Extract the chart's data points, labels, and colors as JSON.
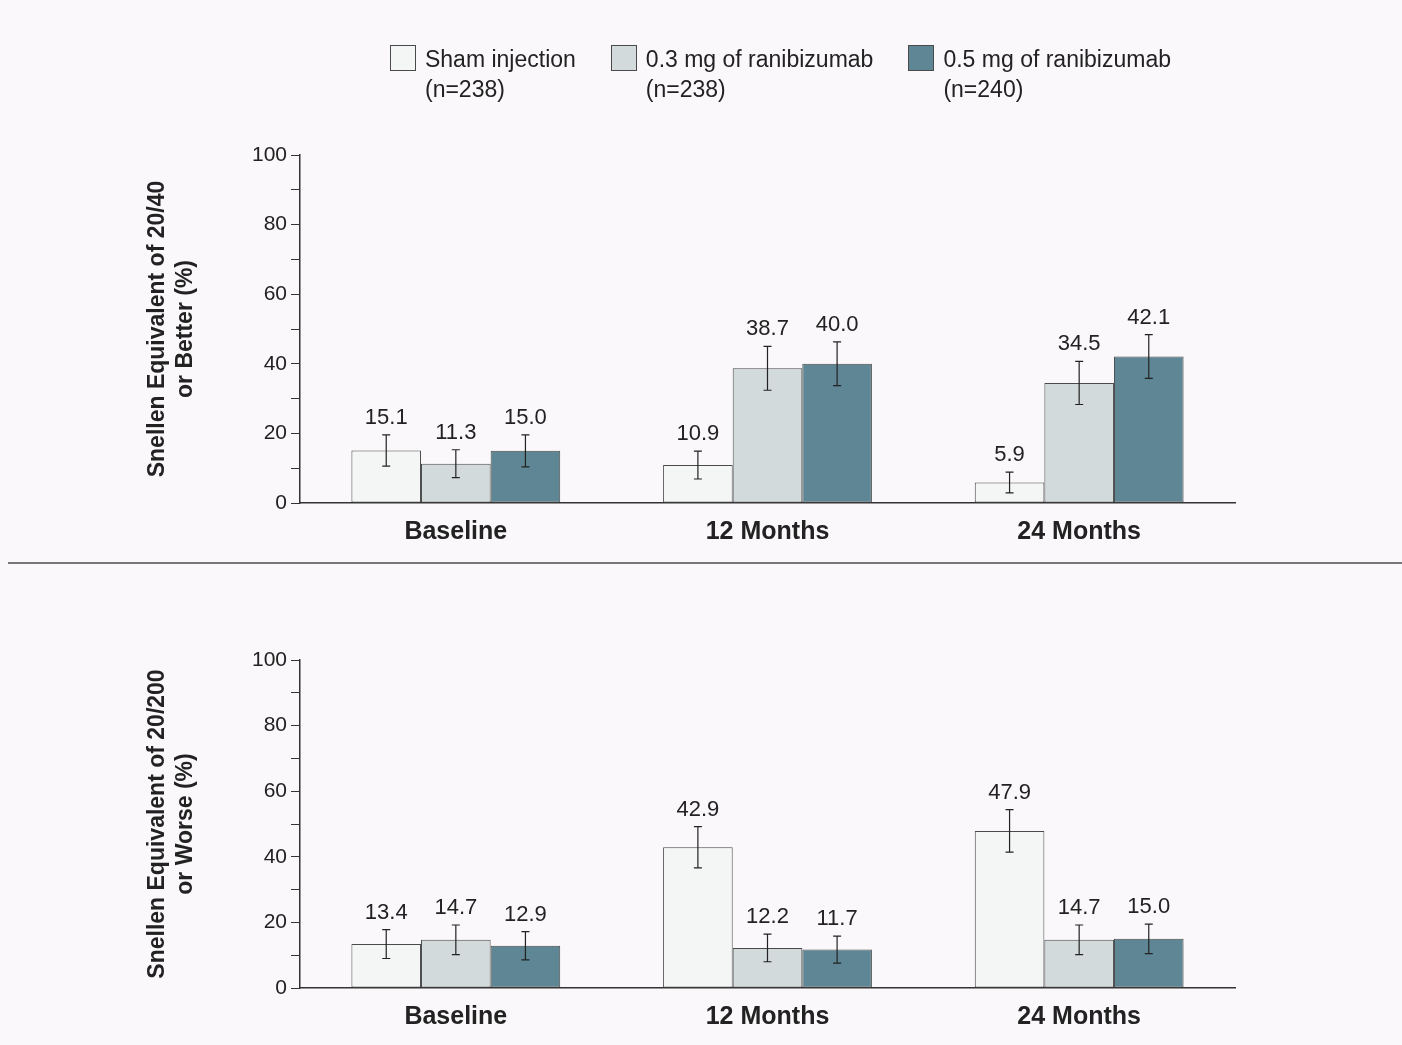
{
  "chart_data": [
    {
      "type": "bar",
      "ylabel": "Snellen Equivalent of 20/40 or Better (%)",
      "categories": [
        "Baseline",
        "12 Months",
        "24 Months"
      ],
      "series": [
        {
          "name": "Sham injection (n=238)",
          "color": "#f4f6f6",
          "values": [
            15.1,
            10.9,
            5.9
          ],
          "errors": [
            4.5,
            4,
            3
          ],
          "value_labels": [
            "15.1",
            "10.9",
            "5.9"
          ]
        },
        {
          "name": "0.3 mg of ranibizumab (n=238)",
          "color": "#d3dadc",
          "values": [
            11.3,
            38.7,
            34.5
          ],
          "errors": [
            4,
            6.3,
            6.2
          ],
          "value_labels": [
            "11.3",
            "38.7",
            "34.5"
          ]
        },
        {
          "name": "0.5 mg of ranibizumab (n=240)",
          "color": "#5e8694",
          "values": [
            15.0,
            40.0,
            42.1
          ],
          "errors": [
            4.6,
            6.3,
            6.3
          ],
          "value_labels": [
            "15.0",
            "40.0",
            "42.1"
          ]
        }
      ],
      "ylim": [
        0,
        100
      ],
      "yticks": [
        0,
        {
          "value": 10,
          "label": null
        },
        20,
        {
          "value": 30,
          "label": null
        },
        40,
        {
          "value": 50,
          "label": null
        },
        60,
        {
          "value": 70,
          "label": null
        },
        80,
        {
          "value": 90,
          "label": null
        },
        100
      ],
      "grid": false,
      "legend": "top"
    },
    {
      "type": "bar",
      "ylabel": "Snellen Equivalent of 20/200 or Worse (%)",
      "categories": [
        "Baseline",
        "12 Months",
        "24 Months"
      ],
      "series": [
        {
          "color": "#f4f6f6",
          "values": [
            13.4,
            42.9,
            47.9
          ],
          "errors": [
            4.4,
            6.3,
            6.5
          ],
          "value_labels": [
            "13.4",
            "42.9",
            "47.9"
          ]
        },
        {
          "color": "#d3dadc",
          "values": [
            14.7,
            12.2,
            14.7
          ],
          "errors": [
            4.5,
            4.2,
            4.5
          ],
          "value_labels": [
            "14.7",
            "12.2",
            "14.7"
          ]
        },
        {
          "color": "#5e8694",
          "values": [
            12.9,
            11.7,
            15.0
          ],
          "errors": [
            4.3,
            4.1,
            4.5
          ],
          "value_labels": [
            "12.9",
            "11.7",
            "15.0"
          ]
        }
      ],
      "ylim": [
        0,
        100
      ],
      "yticks": [
        0,
        {
          "value": 10,
          "label": null
        },
        20,
        {
          "value": 30,
          "label": null
        },
        40,
        {
          "value": 50,
          "label": null
        },
        60,
        {
          "value": 70,
          "label": null
        },
        80,
        {
          "value": 90,
          "label": null
        },
        100
      ],
      "grid": false,
      "legend": false
    }
  ]
}
